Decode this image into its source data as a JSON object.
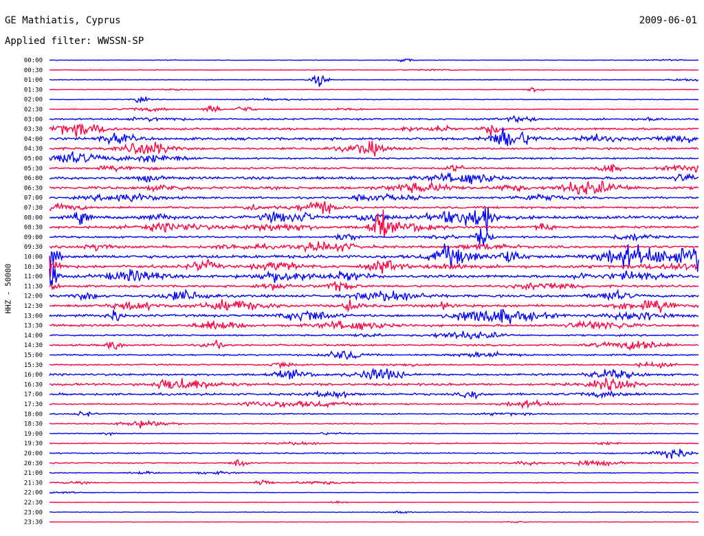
{
  "header": {
    "station": "GE Mathiatis, Cyprus",
    "date": "2009-06-01",
    "filter": "Applied filter: WWSSN-SP"
  },
  "colors": {
    "even_trace": "#0000ff",
    "odd_trace": "#ff0040",
    "background": "#ffffff"
  },
  "chart_data": {
    "type": "line",
    "title": "GE Mathiatis, Cyprus",
    "subtitle": "Applied filter: WWSSN-SP",
    "ylabel": "HHZ - 50000",
    "xlabel": "",
    "row_labels": [
      "00:00",
      "00:30",
      "01:00",
      "01:30",
      "02:00",
      "02:30",
      "03:00",
      "03:30",
      "04:00",
      "04:30",
      "05:00",
      "05:30",
      "06:00",
      "06:30",
      "07:00",
      "07:30",
      "08:00",
      "08:30",
      "09:00",
      "09:30",
      "10:00",
      "10:30",
      "11:00",
      "11:30",
      "12:00",
      "12:30",
      "13:00",
      "13:30",
      "14:00",
      "14:30",
      "15:00",
      "15:30",
      "16:00",
      "16:30",
      "17:00",
      "17:30",
      "18:00",
      "18:30",
      "19:00",
      "19:30",
      "20:00",
      "20:30",
      "21:00",
      "21:30",
      "22:00",
      "22:30",
      "23:00",
      "23:30"
    ],
    "row_minutes": 30,
    "series_colors": [
      "#0000ff",
      "#ff0040"
    ],
    "noise_level": [
      0.3,
      0.3,
      0.4,
      0.3,
      0.4,
      0.6,
      1.0,
      1.3,
      1.6,
      1.3,
      1.1,
      1.2,
      1.6,
      1.7,
      1.2,
      1.3,
      1.8,
      1.5,
      1.1,
      1.4,
      1.9,
      1.8,
      1.7,
      1.3,
      1.5,
      1.6,
      1.5,
      1.4,
      1.0,
      1.1,
      0.9,
      0.9,
      1.3,
      1.4,
      1.3,
      0.9,
      0.7,
      0.6,
      0.5,
      0.6,
      0.7,
      0.7,
      0.5,
      0.5,
      0.3,
      0.3,
      0.3,
      0.3
    ],
    "events": [
      {
        "row": 0,
        "minute": 16.5,
        "amplitude": 2.5
      },
      {
        "row": 2,
        "minute": 12.5,
        "amplitude": 8
      },
      {
        "row": 3,
        "minute": 22.5,
        "amplitude": 3
      },
      {
        "row": 4,
        "minute": 4.2,
        "amplitude": 4
      },
      {
        "row": 5,
        "minute": 7.5,
        "amplitude": 6
      },
      {
        "row": 5,
        "minute": 9.0,
        "amplitude": 5
      },
      {
        "row": 7,
        "minute": 20.5,
        "amplitude": 8
      },
      {
        "row": 8,
        "minute": 21.0,
        "amplitude": 7
      },
      {
        "row": 14,
        "minute": 14.5,
        "amplitude": 6
      },
      {
        "row": 15,
        "minute": 12.5,
        "amplitude": 5
      },
      {
        "row": 16,
        "minute": 1.5,
        "amplitude": 7
      },
      {
        "row": 16,
        "minute": 20.0,
        "amplitude": 20
      },
      {
        "row": 17,
        "minute": 15.3,
        "amplitude": 14
      },
      {
        "row": 18,
        "minute": 20.0,
        "amplitude": 11
      },
      {
        "row": 20,
        "minute": 0.1,
        "amplitude": 14
      },
      {
        "row": 20,
        "minute": 29.9,
        "amplitude": 14
      },
      {
        "row": 21,
        "minute": 0.1,
        "amplitude": 16
      },
      {
        "row": 22,
        "minute": 0.1,
        "amplitude": 14
      },
      {
        "row": 25,
        "minute": 14.0,
        "amplitude": 7
      },
      {
        "row": 26,
        "minute": 3.0,
        "amplitude": 7
      },
      {
        "row": 29,
        "minute": 3.0,
        "amplitude": 6
      },
      {
        "row": 40,
        "minute": 28.8,
        "amplitude": 5
      },
      {
        "row": 41,
        "minute": 8.8,
        "amplitude": 5
      },
      {
        "row": 43,
        "minute": 9.9,
        "amplitude": 4
      }
    ]
  }
}
